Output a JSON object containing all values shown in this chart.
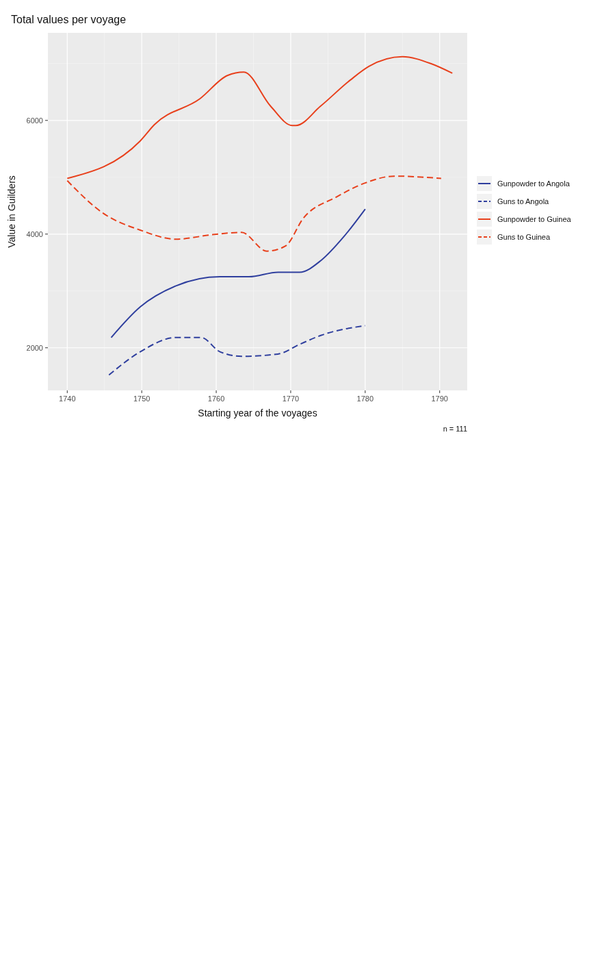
{
  "chart_data": {
    "type": "line",
    "title": "Total values per voyage",
    "xlabel": "Starting year of the voyages",
    "ylabel": "Value in Guilders",
    "annotations": [
      "n = 111"
    ],
    "xlim": [
      1737.4,
      1793.7
    ],
    "ylim": [
      1250,
      7540
    ],
    "xticks": [
      1740,
      1750,
      1760,
      1770,
      1780,
      1790
    ],
    "yticks": [
      2000,
      4000,
      6000
    ],
    "grid": true,
    "legend": "right",
    "series": [
      {
        "name": "Gunpowder to Angola",
        "color": "#2f3f9e",
        "line_style": "solid",
        "x": [
          1745.9,
          1749.8,
          1754.6,
          1760.5,
          1764.4,
          1768.3,
          1771.2,
          1774.1,
          1777.1,
          1780
        ],
        "values": [
          2180,
          2720,
          3090,
          3250,
          3250,
          3330,
          3330,
          3540,
          3950,
          4440
        ]
      },
      {
        "name": "Guns to Angola",
        "color": "#2f3f9e",
        "line_style": "dashed",
        "x": [
          1745.6,
          1749.8,
          1754.6,
          1758,
          1760.5,
          1763.4,
          1768.3,
          1771.2,
          1774.1,
          1780
        ],
        "values": [
          1520,
          1930,
          2180,
          2180,
          1930,
          1850,
          1890,
          2060,
          2220,
          2390
        ]
      },
      {
        "name": "Gunpowder to Guinea",
        "color": "#e8401c",
        "line_style": "solid",
        "x": [
          1740,
          1749.8,
          1751.7,
          1757.8,
          1761.5,
          1763.7,
          1767.3,
          1770.2,
          1770.7,
          1774,
          1778,
          1780.5,
          1785,
          1788.8,
          1791.7
        ],
        "values": [
          4980,
          5640,
          5925,
          6380,
          6790,
          6850,
          6250,
          5910,
          5910,
          6250,
          6710,
          6950,
          7120,
          7000,
          6830
        ]
      },
      {
        "name": "Guns to Guinea",
        "color": "#e8401c",
        "line_style": "dashed",
        "x": [
          1740,
          1744.9,
          1749.8,
          1754.6,
          1759.5,
          1763.4,
          1766.8,
          1769.3,
          1771.7,
          1776.1,
          1780,
          1783.9,
          1790.2
        ],
        "values": [
          4940,
          4360,
          4070,
          3910,
          3990,
          4030,
          3700,
          3790,
          4280,
          4650,
          4900,
          5020,
          4980
        ]
      }
    ]
  }
}
